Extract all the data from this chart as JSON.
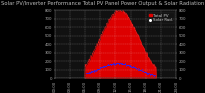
{
  "title": "Solar PV/Inverter Performance Total PV Panel Power Output & Solar Radiation",
  "bg_color": "#000000",
  "plot_bg_color": "#111111",
  "grid_color": "#ffffff",
  "red_fill_color": "#dd0000",
  "red_edge_color": "#ff2222",
  "blue_dot_color": "#2222ff",
  "pv_peak_kw": 800,
  "rad_peak_wm2": 175,
  "legend_pv": "Total PV",
  "legend_rad": "Solar Rad.",
  "title_color": "#bbbbbb",
  "title_fontsize": 3.8,
  "tick_fontsize": 2.8,
  "label_fontsize": 3.0,
  "yticks": [
    0,
    100,
    200,
    300,
    400,
    500,
    600,
    700,
    800
  ],
  "xtick_labels": [
    "00:00",
    "03:00",
    "06:00",
    "09:00",
    "12:00",
    "15:00",
    "18:00",
    "21:00",
    "24:00"
  ]
}
